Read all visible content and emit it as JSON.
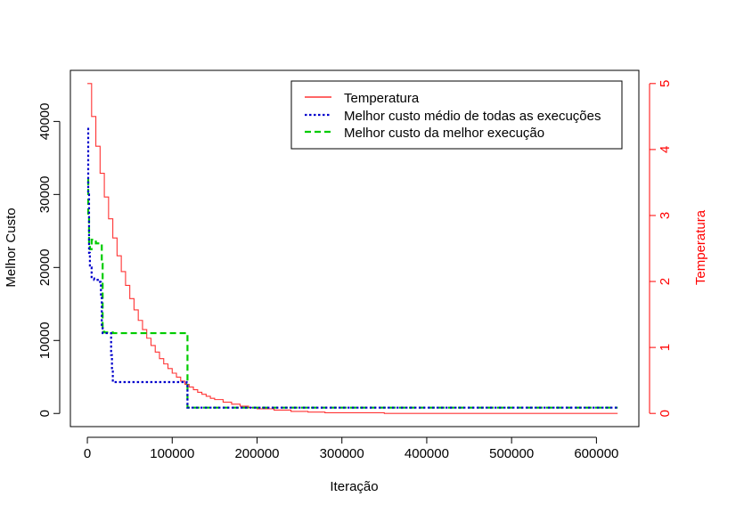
{
  "chart_data": {
    "type": "line",
    "title": "",
    "xlabel": "Iteração",
    "ylabel_left": "Melhor Custo",
    "ylabel_right": "Temperatura",
    "xlim": [
      -20000,
      650000
    ],
    "ylim_left": [
      -1800,
      47000
    ],
    "ylim_right": [
      -0.2,
      5.2
    ],
    "x_ticks": [
      0,
      100000,
      200000,
      300000,
      400000,
      500000,
      600000
    ],
    "y_left_ticks": [
      0,
      10000,
      20000,
      30000,
      40000
    ],
    "y_right_ticks": [
      0,
      1,
      2,
      3,
      4,
      5
    ],
    "grid": false,
    "legend_position": "top-right",
    "colors": {
      "temperature": "#ff3333",
      "mean_best": "#0000cc",
      "best_run": "#00cc00",
      "right_axis": "#ff0000",
      "axis": "#000000"
    },
    "series": [
      {
        "name": "Temperatura",
        "axis": "right",
        "style": "step",
        "x": [
          0,
          5000,
          10000,
          15000,
          20000,
          25000,
          30000,
          35000,
          40000,
          45000,
          50000,
          55000,
          60000,
          65000,
          70000,
          75000,
          80000,
          85000,
          90000,
          95000,
          100000,
          105000,
          110000,
          115000,
          120000,
          125000,
          130000,
          135000,
          140000,
          145000,
          150000,
          160000,
          170000,
          180000,
          190000,
          200000,
          220000,
          240000,
          260000,
          280000,
          300000,
          350000,
          400000,
          500000,
          625000
        ],
        "y": [
          5.0,
          4.5,
          4.05,
          3.64,
          3.28,
          2.95,
          2.66,
          2.39,
          2.15,
          1.94,
          1.74,
          1.57,
          1.41,
          1.27,
          1.14,
          1.03,
          0.93,
          0.83,
          0.75,
          0.68,
          0.61,
          0.55,
          0.49,
          0.44,
          0.4,
          0.36,
          0.32,
          0.29,
          0.26,
          0.23,
          0.21,
          0.17,
          0.14,
          0.11,
          0.09,
          0.07,
          0.05,
          0.03,
          0.02,
          0.01,
          0.01,
          0.0,
          0.0,
          0.0,
          0.0
        ]
      },
      {
        "name": "Melhor custo médio de todas as execuções",
        "axis": "left",
        "style": "step",
        "x": [
          0,
          1000,
          2000,
          3000,
          5000,
          8000,
          15000,
          16000,
          17000,
          18000,
          20000,
          28000,
          29000,
          30000,
          117000,
          118000,
          625000
        ],
        "y": [
          39000,
          30000,
          22000,
          20000,
          18500,
          18300,
          18000,
          16000,
          12000,
          11000,
          11000,
          8000,
          6000,
          4300,
          4200,
          800,
          800
        ]
      },
      {
        "name": "Melhor custo da melhor execução",
        "axis": "left",
        "style": "step",
        "x": [
          0,
          1000,
          2000,
          3000,
          5000,
          10000,
          17000,
          18000,
          20000,
          30000,
          117000,
          118000,
          625000
        ],
        "y": [
          32000,
          27000,
          23000,
          22500,
          23800,
          23300,
          20500,
          11200,
          11100,
          11000,
          10800,
          800,
          800
        ]
      }
    ]
  }
}
